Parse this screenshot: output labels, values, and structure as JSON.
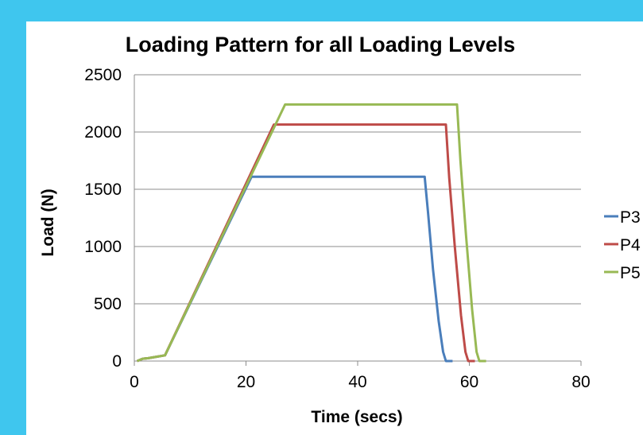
{
  "chart_data": {
    "type": "line",
    "title": "Loading Pattern for all Loading Levels",
    "xlabel": "Time (secs)",
    "ylabel": "Load (N)",
    "xlim": [
      0,
      80
    ],
    "ylim": [
      0,
      2500
    ],
    "xticks": [
      "0",
      "20",
      "40",
      "60",
      "80"
    ],
    "yticks": [
      "0",
      "500",
      "1000",
      "1500",
      "2000",
      "2500"
    ],
    "grid": "horizontal",
    "legend_position": "right",
    "series": [
      {
        "name": "P3",
        "color": "#4a7ebb",
        "points": [
          [
            0.5,
            0
          ],
          [
            1.5,
            20
          ],
          [
            2.5,
            25
          ],
          [
            5.5,
            50
          ],
          [
            21,
            1610
          ],
          [
            52,
            1610
          ],
          [
            52.6,
            1300
          ],
          [
            53.5,
            800
          ],
          [
            54.5,
            350
          ],
          [
            55.3,
            80
          ],
          [
            55.8,
            0
          ],
          [
            57,
            0
          ]
        ]
      },
      {
        "name": "P4",
        "color": "#be4b48",
        "points": [
          [
            0.5,
            0
          ],
          [
            1.5,
            20
          ],
          [
            2.5,
            25
          ],
          [
            5.5,
            50
          ],
          [
            25,
            2065
          ],
          [
            55.8,
            2065
          ],
          [
            56.4,
            1600
          ],
          [
            57.4,
            1000
          ],
          [
            58.5,
            400
          ],
          [
            59.3,
            80
          ],
          [
            59.8,
            0
          ],
          [
            61,
            0
          ]
        ]
      },
      {
        "name": "P5",
        "color": "#98b954",
        "points": [
          [
            0.5,
            0
          ],
          [
            1.5,
            20
          ],
          [
            2.5,
            25
          ],
          [
            5.5,
            50
          ],
          [
            27,
            2240
          ],
          [
            57.8,
            2240
          ],
          [
            58.4,
            1750
          ],
          [
            59.4,
            1100
          ],
          [
            60.5,
            450
          ],
          [
            61.3,
            80
          ],
          [
            61.8,
            0
          ],
          [
            63,
            0
          ]
        ]
      }
    ]
  }
}
